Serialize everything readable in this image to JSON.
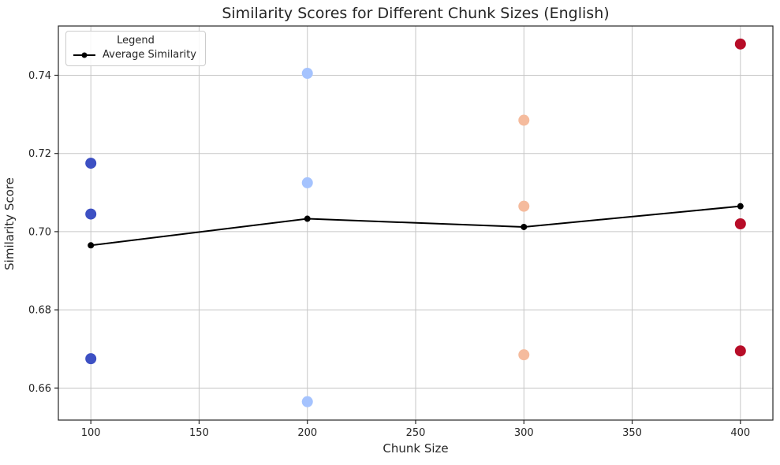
{
  "chart_data": {
    "type": "scatter",
    "title": "Similarity Scores for Different Chunk Sizes (English)",
    "xlabel": "Chunk Size",
    "ylabel": "Similarity Score",
    "xlim": [
      85,
      415
    ],
    "ylim": [
      0.6518,
      0.7526
    ],
    "xticks": [
      100,
      150,
      200,
      250,
      300,
      350,
      400
    ],
    "yticks": [
      0.66,
      0.68,
      0.7,
      0.72,
      0.74
    ],
    "grid": true,
    "legend": {
      "title": "Legend",
      "position": "upper-left",
      "entries": [
        {
          "label": "Average Similarity",
          "marker": "line-dot",
          "color": "#000000"
        }
      ]
    },
    "scatter_groups": [
      {
        "chunk_size": 100,
        "color": "#3d50c3",
        "values": [
          0.7175,
          0.7045,
          0.6675
        ]
      },
      {
        "chunk_size": 200,
        "color": "#a5c3fe",
        "values": [
          0.7405,
          0.7125,
          0.6565
        ]
      },
      {
        "chunk_size": 300,
        "color": "#f5bb9d",
        "values": [
          0.7285,
          0.7065,
          0.6685
        ]
      },
      {
        "chunk_size": 400,
        "color": "#b70d28",
        "values": [
          0.748,
          0.702,
          0.6695
        ]
      }
    ],
    "average_line": {
      "name": "Average Similarity",
      "color": "#000000",
      "x": [
        100,
        200,
        300,
        400
      ],
      "y": [
        0.6965,
        0.7033,
        0.7012,
        0.7065
      ]
    },
    "style": {
      "grid_color": "#c6c6c6",
      "spine_color": "#262626",
      "tick_label_color": "#262626",
      "background": "#ffffff"
    }
  }
}
